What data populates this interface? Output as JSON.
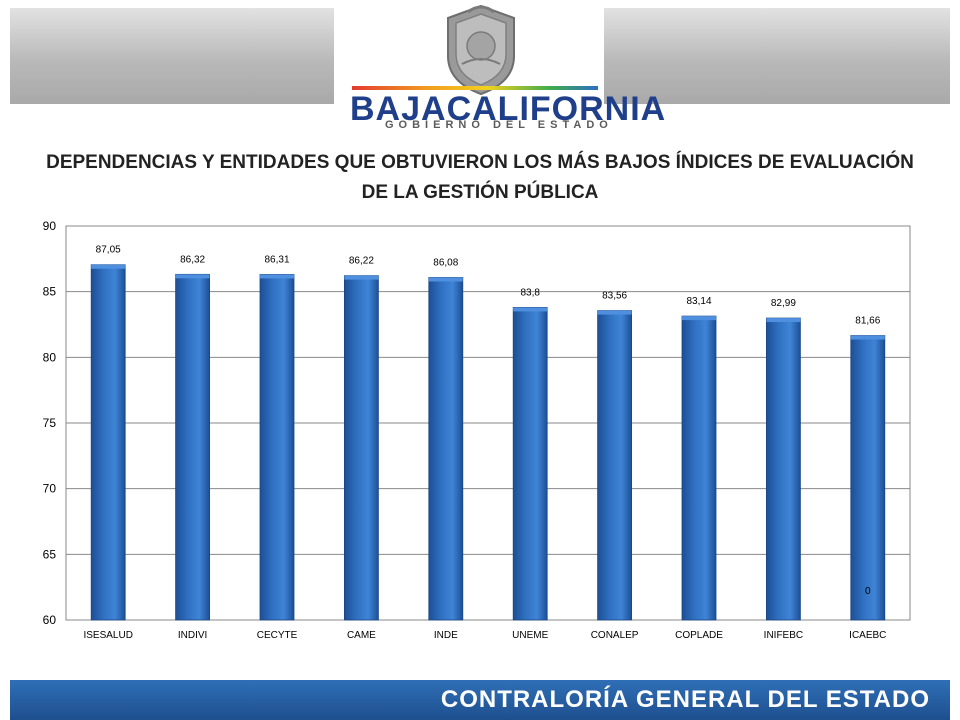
{
  "header": {
    "brand_part1": "BAJA",
    "brand_part2": "CALIFORNIA",
    "subtitle": "GOBIERNO DEL ESTADO",
    "seal_icon": "state-seal-icon"
  },
  "footer": {
    "text": "CONTRALORÍA GENERAL DEL ESTADO"
  },
  "colors": {
    "bar_fill": "#2f6fc0",
    "bar_top": "#4f8fdf",
    "header_blue": "#1f3f8a",
    "footer_blue": "#2565ad"
  },
  "chart_data": {
    "type": "bar",
    "title_line1": "DEPENDENCIAS Y ENTIDADES QUE OBTUVIERON LOS MÁS BAJOS ÍNDICES DE EVALUACIÓN",
    "title_line2": "DE LA GESTIÓN PÚBLICA",
    "categories": [
      "ISESALUD",
      "INDIVI",
      "CECYTE",
      "CAME",
      "INDE",
      "UNEME",
      "CONALEP",
      "COPLADE",
      "INIFEBC",
      "ICAEBC"
    ],
    "values": [
      87.05,
      86.32,
      86.31,
      86.22,
      86.08,
      83.8,
      83.56,
      83.14,
      82.99,
      81.66
    ],
    "value_labels": [
      "87,05",
      "86,32",
      "86,31",
      "86,22",
      "86,08",
      "83,8",
      "83,56",
      "83,14",
      "82,99",
      "81,66"
    ],
    "extra_label": "0",
    "ylim": [
      60,
      90
    ],
    "yticks": [
      60,
      65,
      70,
      75,
      80,
      85,
      90
    ],
    "grid": true,
    "legend": "none"
  }
}
